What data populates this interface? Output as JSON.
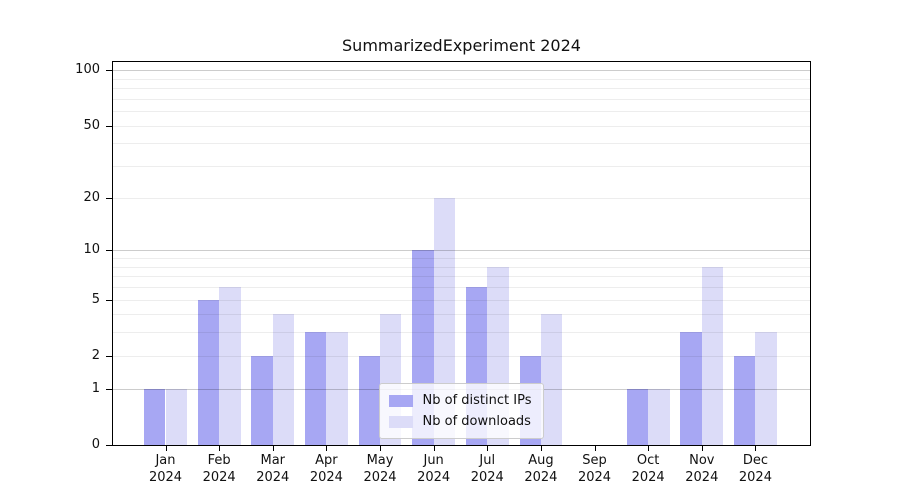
{
  "title": "SummarizedExperiment 2024",
  "chart_data": {
    "type": "bar",
    "title": "SummarizedExperiment 2024",
    "categories": [
      "Jan 2024",
      "Feb 2024",
      "Mar 2024",
      "Apr 2024",
      "May 2024",
      "Jun 2024",
      "Jul 2024",
      "Aug 2024",
      "Sep 2024",
      "Oct 2024",
      "Nov 2024",
      "Dec 2024"
    ],
    "series": [
      {
        "name": "Nb of distinct IPs",
        "color": "#a7a7f3",
        "values": [
          1,
          5,
          2,
          3,
          2,
          10,
          6,
          2,
          0,
          1,
          3,
          2
        ]
      },
      {
        "name": "Nb of downloads",
        "color": "#dcdcf8",
        "values": [
          1,
          6,
          4,
          3,
          4,
          20,
          8,
          4,
          0,
          1,
          8,
          3
        ]
      }
    ],
    "xlabel": "",
    "ylabel": "",
    "scale": "log1p",
    "ylim": [
      0,
      110
    ],
    "yticks": [
      0,
      1,
      2,
      5,
      10,
      20,
      50,
      100
    ],
    "grid": true,
    "gridline_values": {
      "minor": [
        2,
        3,
        4,
        5,
        6,
        7,
        8,
        9,
        20,
        30,
        40,
        50,
        60,
        70,
        80,
        90
      ],
      "major": [
        1,
        10,
        100
      ]
    },
    "legend_position": "lower center",
    "axis_color": "#000000",
    "background_color": "#ffffff"
  }
}
